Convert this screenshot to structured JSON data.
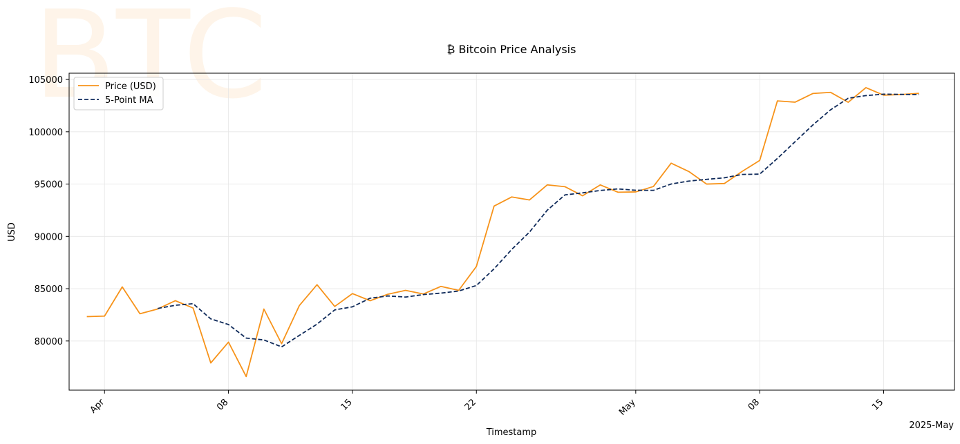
{
  "chart_data": {
    "type": "line",
    "title": "₿ Bitcoin Price Analysis",
    "watermark": "BTC",
    "xlabel": "Timestamp",
    "ylabel": "USD",
    "x_offset_label": "2025-May",
    "x": [
      "2025-03-31",
      "2025-04-01",
      "2025-04-02",
      "2025-04-03",
      "2025-04-04",
      "2025-04-05",
      "2025-04-06",
      "2025-04-07",
      "2025-04-08",
      "2025-04-09",
      "2025-04-10",
      "2025-04-11",
      "2025-04-12",
      "2025-04-13",
      "2025-04-14",
      "2025-04-15",
      "2025-04-16",
      "2025-04-17",
      "2025-04-18",
      "2025-04-19",
      "2025-04-20",
      "2025-04-21",
      "2025-04-22",
      "2025-04-23",
      "2025-04-24",
      "2025-04-25",
      "2025-04-26",
      "2025-04-27",
      "2025-04-28",
      "2025-04-29",
      "2025-04-30",
      "2025-05-01",
      "2025-05-02",
      "2025-05-03",
      "2025-05-04",
      "2025-05-05",
      "2025-05-06",
      "2025-05-07",
      "2025-05-08",
      "2025-05-09",
      "2025-05-10",
      "2025-05-11",
      "2025-05-12",
      "2025-05-13",
      "2025-05-14",
      "2025-05-15",
      "2025-05-16",
      "2025-05-17"
    ],
    "series": [
      {
        "name": "Price (USD)",
        "color": "#f7931a",
        "style": "solid",
        "values": [
          82330,
          82380,
          85170,
          82600,
          83060,
          83850,
          83150,
          77900,
          79890,
          76600,
          83050,
          79740,
          83380,
          85380,
          83300,
          84530,
          83850,
          84470,
          84840,
          84490,
          85220,
          84840,
          87120,
          92900,
          93770,
          93480,
          94920,
          94750,
          93880,
          94920,
          94220,
          94250,
          94770,
          97000,
          96200,
          95000,
          95050,
          96200,
          97260,
          102950,
          102830,
          103660,
          103770,
          102820,
          104220,
          103500,
          103560,
          103680
        ]
      },
      {
        "name": "5-Point MA",
        "color": "#0f2a5a",
        "style": "dashed",
        "values": [
          null,
          null,
          null,
          null,
          83108,
          83412,
          83566,
          82112,
          81570,
          80278,
          80098,
          79436,
          80530,
          81610,
          82970,
          83266,
          84088,
          84306,
          84198,
          84436,
          84574,
          84776,
          85302,
          86896,
          88758,
          90412,
          92498,
          93964,
          94160,
          94390,
          94538,
          94408,
          94400,
          95006,
          95288,
          95450,
          95600,
          95920,
          95950,
          97452,
          99054,
          100644,
          102094,
          103206,
          103460,
          103594,
          103574,
          103554
        ]
      }
    ],
    "yticks": [
      "80000",
      "85000",
      "90000",
      "95000",
      "100000",
      "105000"
    ],
    "xticks": [
      {
        "date": "2025-04-01",
        "label": "Apr"
      },
      {
        "date": "2025-04-08",
        "label": "08"
      },
      {
        "date": "2025-04-15",
        "label": "15"
      },
      {
        "date": "2025-04-22",
        "label": "22"
      },
      {
        "date": "2025-05-01",
        "label": "May"
      },
      {
        "date": "2025-05-08",
        "label": "08"
      },
      {
        "date": "2025-05-15",
        "label": "15"
      }
    ],
    "xlim": [
      "2025-03-30",
      "2025-05-19"
    ],
    "ylim": [
      75300,
      105600
    ],
    "grid": true,
    "legend": "top-left"
  }
}
